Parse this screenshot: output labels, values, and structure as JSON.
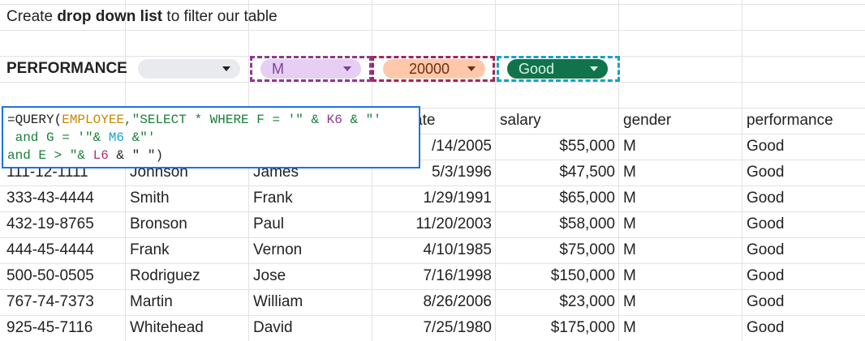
{
  "title": {
    "prefix": "Create ",
    "bold": "drop down list",
    "suffix": " to filter our table"
  },
  "filters": {
    "label": "PERFORMANCE",
    "first_value": "",
    "gender_value": "M",
    "salary_value": "20000",
    "performance_value": "Good"
  },
  "formula": {
    "line1": {
      "a": "=QUERY(",
      "b": "EMPLOYEE",
      "c": ",\"SELECT * WHERE F = '\" & ",
      "d": "K6",
      "e": " & \"'"
    },
    "line2": {
      "a": " and G = '\"& ",
      "b": "M6",
      "c": " &\"'"
    },
    "line3": {
      "a": "and E > \"& ",
      "b": "L6",
      "c": " & \" \")"
    }
  },
  "headers": {
    "date": "ate",
    "salary": "salary",
    "gender": "gender",
    "performance": "performance"
  },
  "rows": [
    {
      "id": "",
      "last": "",
      "first": "",
      "date": "/14/2005",
      "salary": "$55,000",
      "gender": "M",
      "performance": "Good"
    },
    {
      "id": "111-12-1111",
      "last": "Johnson",
      "first": "James",
      "date": "5/3/1996",
      "salary": "$47,500",
      "gender": "M",
      "performance": "Good"
    },
    {
      "id": "333-43-4444",
      "last": "Smith",
      "first": "Frank",
      "date": "1/29/1991",
      "salary": "$65,000",
      "gender": "M",
      "performance": "Good"
    },
    {
      "id": "432-19-8765",
      "last": "Bronson",
      "first": "Paul",
      "date": "11/20/2003",
      "salary": "$58,000",
      "gender": "M",
      "performance": "Good"
    },
    {
      "id": "444-45-4444",
      "last": "Frank",
      "first": "Vernon",
      "date": "4/10/1985",
      "salary": "$75,000",
      "gender": "M",
      "performance": "Good"
    },
    {
      "id": "500-50-0505",
      "last": "Rodriguez",
      "first": "Jose",
      "date": "7/16/1998",
      "salary": "$150,000",
      "gender": "M",
      "performance": "Good"
    },
    {
      "id": "767-74-7373",
      "last": "Martin",
      "first": "William",
      "date": "8/26/2006",
      "salary": "$23,000",
      "gender": "M",
      "performance": "Good"
    },
    {
      "id": "925-45-7116",
      "last": "Whitehead",
      "first": "David",
      "date": "7/25/1980",
      "salary": "$175,000",
      "gender": "M",
      "performance": "Good"
    }
  ],
  "colors": {
    "chip_grey": "#e8eaed",
    "chip_purple": "#e6cff2",
    "chip_orange": "#ffc8aa",
    "chip_green": "#11734b",
    "dash_purple": "#8e3b8c",
    "dash_magenta": "#a0275a",
    "dash_cyan": "#12a4c4",
    "formula_border": "#1a73e8"
  }
}
